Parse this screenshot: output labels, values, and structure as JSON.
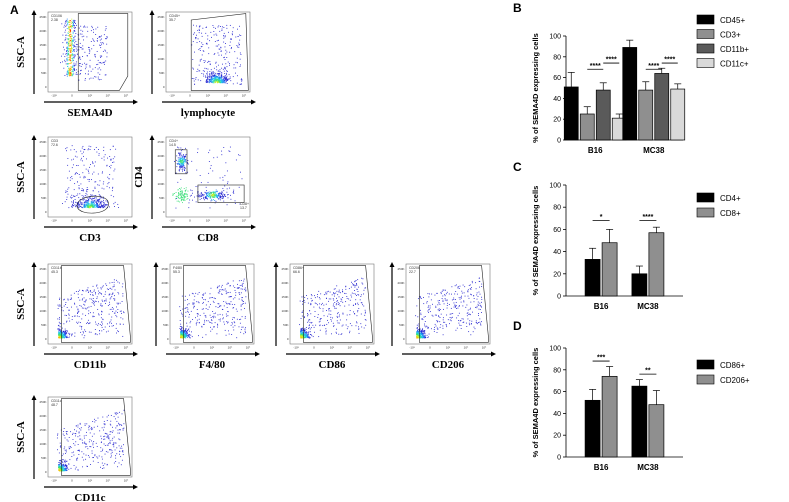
{
  "panel_letters": {
    "a": "A",
    "b": "B",
    "c": "C",
    "d": "D"
  },
  "flow": {
    "plots": [
      {
        "id": "sema4d",
        "xlabel": "SEMA4D",
        "ylabel": "SSC-A",
        "gate_name": "CD106",
        "gate_value": "2.38",
        "style": "dense"
      },
      {
        "id": "lymphocyte",
        "xlabel": "lymphocyte",
        "ylabel": "",
        "gate_name": "CD45+",
        "gate_value": "35.7",
        "style": "cloud"
      },
      {
        "id": "cd3",
        "xlabel": "CD3",
        "ylabel": "SSC-A",
        "gate_name": "CD3",
        "gate_value": "72.6",
        "style": "oval"
      },
      {
        "id": "cd4cd8",
        "xlabel": "CD8",
        "ylabel": "CD4",
        "gate_name": "CD4+",
        "gate_value": "14.5",
        "gate2_name": "CD8+",
        "gate2_value": "13.7",
        "style": "quad"
      },
      {
        "id": "cd11b",
        "xlabel": "CD11b",
        "ylabel": "SSC-A",
        "gate_name": "CD11b",
        "gate_value": "45.3",
        "style": "spread"
      },
      {
        "id": "f480",
        "xlabel": "F4/80",
        "ylabel": "",
        "gate_name": "F4/80",
        "gate_value": "55.3",
        "style": "spread"
      },
      {
        "id": "cd86",
        "xlabel": "CD86",
        "ylabel": "",
        "gate_name": "CD86+",
        "gate_value": "66.6",
        "style": "spread"
      },
      {
        "id": "cd206",
        "xlabel": "CD206",
        "ylabel": "",
        "gate_name": "CD206",
        "gate_value": "22.7",
        "style": "spread"
      },
      {
        "id": "cd11c",
        "xlabel": "CD11c",
        "ylabel": "SSC-A",
        "gate_name": "CD11c",
        "gate_value": "48.7",
        "style": "spread"
      }
    ],
    "y_ticks": [
      "250K",
      "200K",
      "150K",
      "100K",
      "50K",
      "0"
    ],
    "x_ticks": [
      "-10³",
      "0",
      "10³",
      "10⁴",
      "10⁵"
    ]
  },
  "chart_data": [
    {
      "panel": "B",
      "type": "bar",
      "title": "",
      "xlabel": "",
      "ylabel": "% of SEMA4D expressing cells",
      "ylim": [
        0,
        100
      ],
      "y_ticks": [
        0,
        20,
        40,
        60,
        80,
        100
      ],
      "categories": [
        "B16",
        "MC38"
      ],
      "series": [
        {
          "name": "CD45+",
          "color": "#000000",
          "values": [
            51,
            89
          ],
          "errors": [
            14,
            7
          ]
        },
        {
          "name": "CD3+",
          "color": "#8f8f8f",
          "values": [
            25,
            48
          ],
          "errors": [
            7,
            8
          ]
        },
        {
          "name": "CD11b+",
          "color": "#5a5a5a",
          "values": [
            48,
            64
          ],
          "errors": [
            7,
            5
          ]
        },
        {
          "name": "CD11c+",
          "color": "#d9d9d9",
          "values": [
            21,
            49
          ],
          "errors": [
            4,
            5
          ]
        }
      ],
      "significance": [
        {
          "cat": 0,
          "from": 1,
          "to": 2,
          "label": "****",
          "y": 68
        },
        {
          "cat": 0,
          "from": 2,
          "to": 3,
          "label": "****",
          "y": 74
        },
        {
          "cat": 1,
          "from": 1,
          "to": 2,
          "label": "****",
          "y": 68
        },
        {
          "cat": 1,
          "from": 2,
          "to": 3,
          "label": "****",
          "y": 74
        }
      ],
      "legend": "right"
    },
    {
      "panel": "C",
      "type": "bar",
      "title": "",
      "xlabel": "",
      "ylabel": "% of SEMA4D expressing cells",
      "ylim": [
        0,
        100
      ],
      "y_ticks": [
        0,
        20,
        40,
        60,
        80,
        100
      ],
      "categories": [
        "B16",
        "MC38"
      ],
      "series": [
        {
          "name": "CD4+",
          "color": "#000000",
          "values": [
            33,
            20
          ],
          "errors": [
            10,
            7
          ]
        },
        {
          "name": "CD8+",
          "color": "#8f8f8f",
          "values": [
            48,
            57
          ],
          "errors": [
            12,
            5
          ]
        }
      ],
      "significance": [
        {
          "cat": 0,
          "from": 0,
          "to": 1,
          "label": "*",
          "y": 68
        },
        {
          "cat": 1,
          "from": 0,
          "to": 1,
          "label": "****",
          "y": 68
        }
      ],
      "legend": "right"
    },
    {
      "panel": "D",
      "type": "bar",
      "title": "",
      "xlabel": "",
      "ylabel": "% of SEMA4D expressing cells",
      "ylim": [
        0,
        100
      ],
      "y_ticks": [
        0,
        20,
        40,
        60,
        80,
        100
      ],
      "categories": [
        "B16",
        "MC38"
      ],
      "series": [
        {
          "name": "CD86+",
          "color": "#000000",
          "values": [
            52,
            65
          ],
          "errors": [
            10,
            6
          ]
        },
        {
          "name": "CD206+",
          "color": "#8f8f8f",
          "values": [
            74,
            48
          ],
          "errors": [
            9,
            13
          ]
        }
      ],
      "significance": [
        {
          "cat": 0,
          "from": 0,
          "to": 1,
          "label": "***",
          "y": 88
        },
        {
          "cat": 1,
          "from": 0,
          "to": 1,
          "label": "**",
          "y": 76
        }
      ],
      "legend": "right"
    }
  ]
}
